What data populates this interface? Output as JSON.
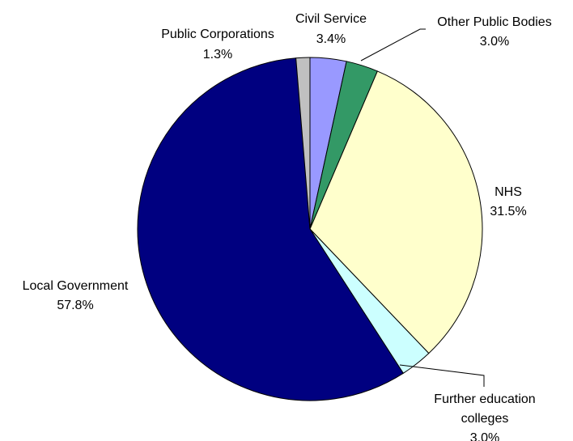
{
  "chart_data": {
    "type": "pie",
    "title": "",
    "legend": "none",
    "slices": [
      {
        "label": "Civil Service",
        "value": 3.4,
        "value_label": "3.4%",
        "color": "#9999ff"
      },
      {
        "label": "Other Public Bodies",
        "value": 3.0,
        "value_label": "3.0%",
        "color": "#339966"
      },
      {
        "label": "NHS",
        "value": 31.5,
        "value_label": "31.5%",
        "color": "#ffffcc"
      },
      {
        "label_lines": [
          "Further education",
          "colleges"
        ],
        "value": 3.0,
        "value_label": "3.0%",
        "color": "#ccffff"
      },
      {
        "label": "Local Government",
        "value": 57.8,
        "value_label": "57.8%",
        "color": "#000080"
      },
      {
        "label": "Public Corporations",
        "value": 1.3,
        "value_label": "1.3%",
        "color": "#c0c0c0"
      }
    ]
  }
}
